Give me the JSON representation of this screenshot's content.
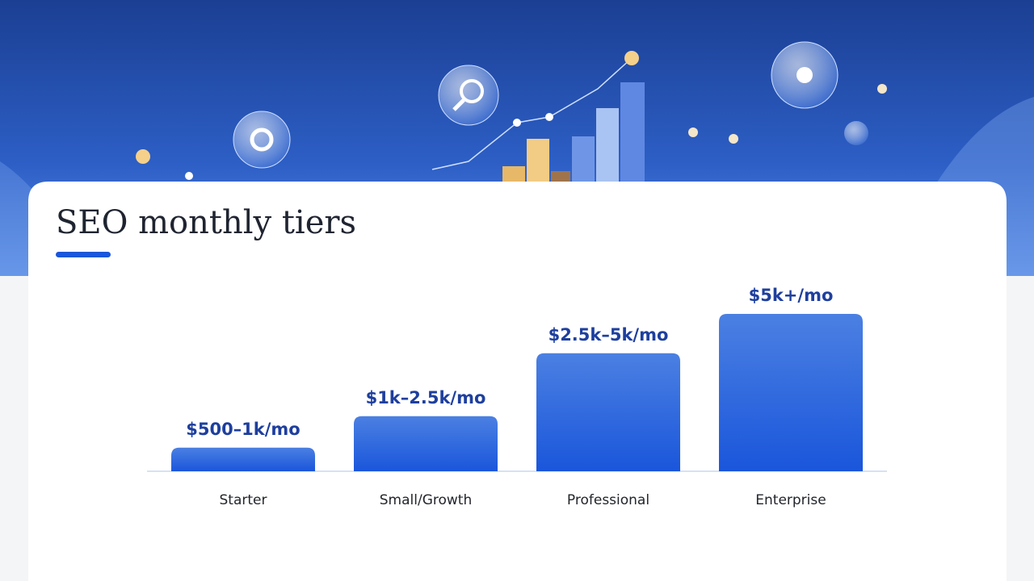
{
  "chart_data": {
    "type": "bar",
    "title": "SEO monthly tiers",
    "categories": [
      "Starter",
      "Small/Growth",
      "Professional",
      "Enterprise"
    ],
    "values": [
      750,
      1750,
      3750,
      5000
    ],
    "value_labels": [
      "$500–1k/mo",
      "$1k–2.5k/mo",
      "$2.5k–5k/mo",
      "$5k+/mo"
    ],
    "color": "#1a56db"
  }
}
